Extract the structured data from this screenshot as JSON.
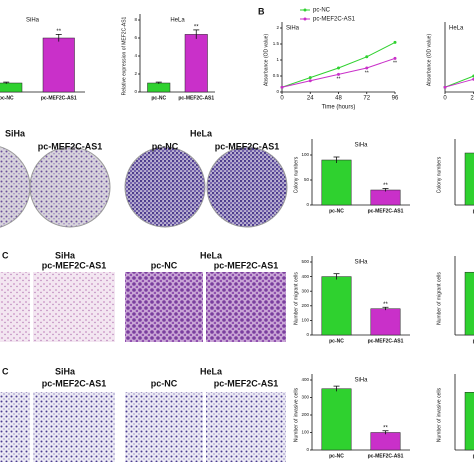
{
  "chart_data": [
    {
      "type": "bar",
      "title": "SiHa",
      "categories": [
        "pc-NC",
        "pc-MEF2C-AS1"
      ],
      "values": [
        1,
        6.0
      ],
      "errors": [
        0.1,
        0.4
      ],
      "colors": [
        "#2fd12f",
        "#c930c9"
      ],
      "annotation": "**",
      "ylim": [
        0,
        8
      ]
    },
    {
      "type": "bar",
      "title": "HeLa",
      "ylabel": "Relative expression of MEF2C-AS1",
      "categories": [
        "pc-NC",
        "pc-MEF2C-AS1"
      ],
      "values": [
        1,
        6.4
      ],
      "errors": [
        0.1,
        0.5
      ],
      "colors": [
        "#2fd12f",
        "#c930c9"
      ],
      "annotation": "**",
      "ylim": [
        0,
        8
      ],
      "yticks": [
        0,
        2,
        4,
        6,
        8
      ]
    },
    {
      "type": "line",
      "title": "SiHa",
      "xlabel": "Time (hours)",
      "ylabel": "Absorbance (OD value)",
      "x": [
        0,
        24,
        48,
        72,
        96
      ],
      "xlim": [
        0,
        96
      ],
      "xticks": [
        0,
        24,
        48,
        72,
        96
      ],
      "ylim": [
        0,
        2
      ],
      "yticks": [
        0.0,
        0.5,
        1.0,
        1.5,
        2.0
      ],
      "annotation": "**",
      "series": [
        {
          "name": "pc-NC",
          "color": "#2fd12f",
          "values": [
            0.15,
            0.45,
            0.75,
            1.1,
            1.55
          ]
        },
        {
          "name": "pc-MEF2C-AS1",
          "color": "#c930c9",
          "values": [
            0.15,
            0.35,
            0.55,
            0.75,
            1.05
          ]
        }
      ]
    },
    {
      "type": "line",
      "title": "HeLa",
      "ylabel": "Absorbance (OD value)",
      "x": [
        0,
        24,
        48
      ],
      "xlim": [
        0,
        96
      ],
      "xticks": [
        0,
        24
      ],
      "ylim": [
        0,
        2
      ],
      "series": [
        {
          "name": "pc-NC",
          "color": "#2fd12f",
          "values": [
            0.15,
            0.5,
            0.85
          ]
        },
        {
          "name": "pc-MEF2C-AS1",
          "color": "#c930c9",
          "values": [
            0.15,
            0.4,
            0.6
          ]
        }
      ]
    },
    {
      "type": "bar",
      "title": "SiHa",
      "ylabel": "Colony numbers",
      "categories": [
        "pc-NC",
        "pc-MEF2C-AS1"
      ],
      "values": [
        90,
        30
      ],
      "errors": [
        6,
        3
      ],
      "colors": [
        "#2fd12f",
        "#c930c9"
      ],
      "annotation": "**",
      "ylim": [
        0,
        120
      ],
      "yticks": [
        0,
        50,
        100
      ]
    },
    {
      "type": "bar",
      "ylabel": "Colony numbers",
      "categories": [
        "pc-NC"
      ],
      "values": [
        260
      ],
      "errors": [
        12
      ],
      "colors": [
        "#2fd12f"
      ],
      "ylim": [
        0,
        300
      ]
    },
    {
      "type": "bar",
      "title": "SiHa",
      "ylabel": "Number of migrant cells",
      "categories": [
        "pc-NC",
        "pc-MEF2C-AS1"
      ],
      "values": [
        400,
        180
      ],
      "errors": [
        20,
        10
      ],
      "colors": [
        "#2fd12f",
        "#c930c9"
      ],
      "annotation": "**",
      "ylim": [
        0,
        500
      ],
      "yticks": [
        0,
        100,
        200,
        300,
        400,
        500
      ]
    },
    {
      "type": "bar",
      "ylabel": "Number of migrant cells",
      "categories": [
        "pc-NC"
      ],
      "values": [
        430
      ],
      "errors": [
        20
      ],
      "colors": [
        "#2fd12f"
      ],
      "ylim": [
        0,
        500
      ]
    },
    {
      "type": "bar",
      "title": "SiHa",
      "ylabel": "Number of invasive cells",
      "categories": [
        "pc-NC",
        "pc-MEF2C-AS1"
      ],
      "values": [
        350,
        100
      ],
      "errors": [
        15,
        10
      ],
      "colors": [
        "#2fd12f",
        "#c930c9"
      ],
      "annotation": "**",
      "ylim": [
        0,
        400
      ],
      "yticks": [
        0,
        100,
        200,
        300,
        400
      ]
    },
    {
      "type": "bar",
      "ylabel": "Number of invasive cells",
      "categories": [
        "pc-NC"
      ],
      "values": [
        330
      ],
      "errors": [
        20
      ],
      "colors": [
        "#2fd12f"
      ],
      "ylim": [
        0,
        400
      ]
    }
  ],
  "panel_label": "B",
  "image_rows": [
    {
      "title_left": "SiHa",
      "title_right": "HeLa",
      "labels": [
        "pc-MEF2C-AS1",
        "pc-NC",
        "pc-MEF2C-AS1"
      ]
    },
    {
      "cut_label": "C",
      "title_left": "SiHa",
      "title_right": "HeLa",
      "labels": [
        "pc-MEF2C-AS1",
        "pc-NC",
        "pc-MEF2C-AS1"
      ]
    },
    {
      "cut_label": "C",
      "title_left": "SiHa",
      "title_right": "HeLa",
      "labels": [
        "pc-MEF2C-AS1",
        "pc-NC",
        "pc-MEF2C-AS1"
      ]
    }
  ]
}
